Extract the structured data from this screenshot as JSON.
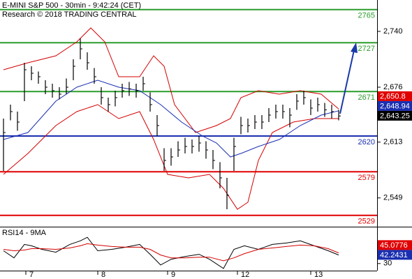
{
  "chart_data": [
    {
      "type": "ohlc",
      "title": "E-MINI S&P 500 - 30min - 9:42:24 (CET)",
      "subtitle": "Research © 2018 TRADING CENTRAL",
      "xlim": [
        -0.5,
        53.5
      ],
      "ylim": [
        2516,
        2776
      ],
      "yticks": [
        {
          "value": 2549,
          "label": "2,549"
        },
        {
          "value": 2613,
          "label": "2,613"
        },
        {
          "value": 2676,
          "label": "2,676"
        },
        {
          "value": 2740,
          "label": "2,740"
        }
      ],
      "xticks": [
        {
          "value": 3.2,
          "label": "7"
        },
        {
          "value": 13.5,
          "label": "8"
        },
        {
          "value": 23.5,
          "label": "9"
        },
        {
          "value": 33.5,
          "label": "12"
        },
        {
          "value": 44,
          "label": "13"
        }
      ],
      "bar_color": "#000000",
      "bars": [
        [
          2640,
          2580,
          2624
        ],
        [
          2656,
          2638,
          2648
        ],
        [
          2648,
          2626,
          2636
        ],
        [
          2704,
          2660,
          2696
        ],
        [
          2700,
          2684,
          2692
        ],
        [
          2694,
          2680,
          2688
        ],
        [
          2684,
          2668,
          2676
        ],
        [
          2680,
          2664,
          2672
        ],
        [
          2676,
          2662,
          2668
        ],
        [
          2686,
          2668,
          2676
        ],
        [
          2708,
          2684,
          2700
        ],
        [
          2732,
          2708,
          2720
        ],
        [
          2716,
          2696,
          2704
        ],
        [
          2698,
          2680,
          2688
        ],
        [
          2676,
          2656,
          2664
        ],
        [
          2664,
          2648,
          2656
        ],
        [
          2672,
          2654,
          2664
        ],
        [
          2680,
          2664,
          2672
        ],
        [
          2682,
          2666,
          2674
        ],
        [
          2680,
          2664,
          2672
        ],
        [
          2688,
          2672,
          2680
        ],
        [
          2670,
          2648,
          2656
        ],
        [
          2644,
          2620,
          2632
        ],
        [
          2606,
          2580,
          2592
        ],
        [
          2606,
          2586,
          2596
        ],
        [
          2614,
          2596,
          2604
        ],
        [
          2618,
          2600,
          2608
        ],
        [
          2616,
          2600,
          2608
        ],
        [
          2620,
          2602,
          2612
        ],
        [
          2614,
          2594,
          2604
        ],
        [
          2604,
          2582,
          2592
        ],
        [
          2590,
          2560,
          2572
        ],
        [
          2572,
          2536,
          2552
        ],
        [
          2618,
          2580,
          2608
        ],
        [
          2642,
          2622,
          2632
        ],
        [
          2640,
          2624,
          2632
        ],
        [
          2644,
          2628,
          2636
        ],
        [
          2644,
          2628,
          2636
        ],
        [
          2652,
          2636,
          2644
        ],
        [
          2656,
          2640,
          2648
        ],
        [
          2656,
          2640,
          2648
        ],
        [
          2652,
          2630,
          2644
        ],
        [
          2668,
          2650,
          2660
        ],
        [
          2672,
          2656,
          2664
        ],
        [
          2662,
          2644,
          2652
        ],
        [
          2664,
          2648,
          2656
        ],
        [
          2658,
          2642,
          2650
        ],
        [
          2656,
          2640,
          2648
        ],
        [
          2650,
          2638,
          2643
        ]
      ],
      "series": [
        {
          "color": "#d40000",
          "x": [
            0,
            3.5,
            7.5,
            10.5,
            12.5,
            14.5,
            16.5,
            19.5,
            21.5,
            23,
            24.5,
            27.5,
            30.5,
            32.5,
            34,
            36.5,
            39.5,
            42.5,
            45.5,
            48
          ],
          "values": [
            2696,
            2704,
            2712,
            2728,
            2744,
            2728,
            2688,
            2688,
            2712,
            2700,
            2656,
            2624,
            2632,
            2640,
            2664,
            2672,
            2668,
            2672,
            2668,
            2651
          ]
        },
        {
          "color": "#d40000",
          "x": [
            0,
            3.5,
            7.5,
            10.5,
            13.5,
            16.5,
            19.5,
            21.5,
            23.5,
            26.5,
            29.5,
            31.5,
            33.5,
            35,
            36.5,
            38.5,
            41.5,
            44.5,
            48
          ],
          "values": [
            2576,
            2600,
            2632,
            2648,
            2656,
            2640,
            2648,
            2616,
            2576,
            2572,
            2576,
            2560,
            2536,
            2544,
            2592,
            2624,
            2636,
            2640,
            2640
          ]
        },
        {
          "color": "#1a2fb0",
          "x": [
            0,
            3.5,
            7.5,
            10.5,
            13.5,
            16.5,
            19.5,
            22.5,
            25.5,
            28.5,
            30.5,
            32.5,
            34,
            36.5,
            39.5,
            42.5,
            45.5,
            48
          ],
          "values": [
            2616,
            2624,
            2660,
            2676,
            2684,
            2676,
            2672,
            2656,
            2636,
            2620,
            2612,
            2596,
            2600,
            2608,
            2616,
            2632,
            2644,
            2649
          ]
        }
      ],
      "levels": [
        {
          "value": 2765,
          "color": "#2a9d2a"
        },
        {
          "value": 2727,
          "color": "#2a9d2a"
        },
        {
          "value": 2671,
          "color": "#2a9d2a"
        },
        {
          "value": 2620,
          "color": "#1a2fb0"
        },
        {
          "value": 2579,
          "color": "#e00000"
        },
        {
          "value": 2529,
          "color": "#e00000"
        }
      ],
      "price_tags": [
        {
          "value": 2650.8,
          "label": "2,650.8",
          "color": "#e00000"
        },
        {
          "value": 2648.94,
          "label": "2,648.94",
          "color": "#1a2fb0"
        },
        {
          "value": 2643.25,
          "label": "2,643.25",
          "color": "#000000"
        }
      ]
    },
    {
      "type": "line",
      "title": "RSI14 - 9MA",
      "xlim": [
        -0.5,
        53.5
      ],
      "ylim": [
        20,
        80
      ],
      "yticks": [
        30
      ],
      "series": [
        {
          "color": "#000000",
          "x": [
            0,
            1.5,
            3,
            4,
            5.5,
            7.5,
            9.5,
            11,
            12,
            13.5,
            15.5,
            17.5,
            19.5,
            21,
            22.5,
            24,
            26,
            28,
            29.5,
            31.5,
            33,
            34.5,
            36.5,
            38.5,
            40.5,
            42.5,
            44.5,
            46.5,
            48
          ],
          "values": [
            48,
            38,
            57,
            55,
            50,
            46,
            57,
            62,
            67,
            48,
            50,
            53,
            57,
            43,
            28,
            36,
            40,
            43,
            36,
            23,
            50,
            55,
            50,
            57,
            59,
            62,
            55,
            48,
            42
          ]
        },
        {
          "color": "#d40000",
          "x": [
            0,
            1.5,
            3,
            4,
            5.5,
            7.5,
            9.5,
            11,
            12,
            13.5,
            15.5,
            17.5,
            19.5,
            21,
            22.5,
            24,
            26,
            28,
            29.5,
            31.5,
            33,
            34.5,
            36.5,
            38.5,
            40.5,
            42.5,
            44.5,
            46.5,
            48
          ],
          "values": [
            50,
            48,
            49,
            51,
            51,
            50,
            52,
            55,
            58,
            56,
            54,
            53,
            53,
            50,
            42,
            38,
            38,
            39,
            39,
            34,
            38,
            44,
            50,
            52,
            54,
            56,
            55,
            51,
            45
          ]
        }
      ],
      "price_tags": [
        {
          "value": 45.0776,
          "label": "45.0776",
          "color": "#e00000"
        },
        {
          "value": 42.2431,
          "label": "42.2431",
          "color": "#1a2fb0"
        }
      ]
    }
  ]
}
